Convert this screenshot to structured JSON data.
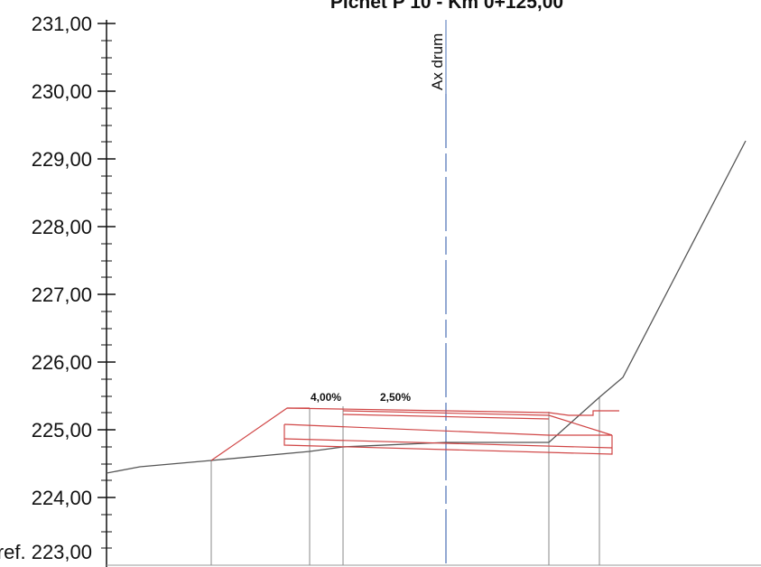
{
  "title": "Pichet P 10 - Km 0+125,00",
  "axis_label": "Ax drum",
  "ref_prefix": "Pl. ref.",
  "colors": {
    "ground": "#555555",
    "road": "#d04545",
    "axis": "#4a6fb5",
    "ticks": "#111111",
    "verticals": "#8a8a8a"
  },
  "chart_data": {
    "type": "cross-section",
    "y_ticks": [
      "231,00",
      "230,00",
      "229,00",
      "228,00",
      "227,00",
      "226,00",
      "225,00",
      "224,00",
      "223,00"
    ],
    "ylim": [
      223,
      231
    ],
    "slopes": [
      {
        "label": "4,00%"
      },
      {
        "label": "2,50%"
      }
    ]
  }
}
